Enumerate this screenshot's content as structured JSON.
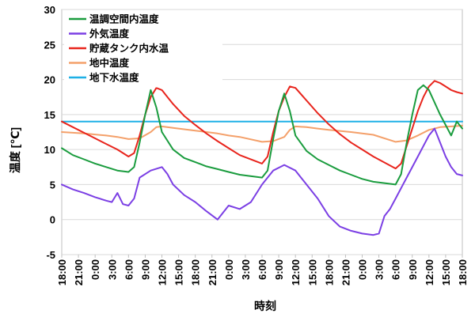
{
  "chart_data": {
    "type": "line",
    "xlabel": "時刻",
    "ylabel": "温度 [℃]",
    "ylim": [
      -5,
      30
    ],
    "yticks": [
      -5,
      0,
      5,
      10,
      15,
      20,
      25,
      30
    ],
    "ytick_labels": [
      "-5",
      "0",
      "5",
      "10",
      "15",
      "20",
      "25",
      "30"
    ],
    "xlim": [
      0,
      72
    ],
    "xtick_labels": [
      "18:00",
      "21:00",
      "0:00",
      "3:00",
      "6:00",
      "9:00",
      "12:00",
      "15:00",
      "18:00",
      "21:00",
      "0:00",
      "3:00",
      "6:00",
      "9:00",
      "12:00",
      "15:00",
      "18:00",
      "21:00",
      "0:00",
      "3:00",
      "6:00",
      "9:00",
      "12:00",
      "15:00",
      "18:00"
    ],
    "grid": "horizontal",
    "legend_position": "top-left",
    "series": [
      {
        "name": "温調空間内温度",
        "color": "#1a9c3e",
        "x": [
          0,
          2,
          4,
          6,
          8,
          10,
          12,
          13,
          14,
          15,
          16,
          17,
          18,
          20,
          22,
          24,
          26,
          28,
          30,
          32,
          36,
          37,
          38,
          39,
          40,
          41,
          42,
          44,
          46,
          48,
          50,
          52,
          54,
          56,
          60,
          61,
          62,
          63,
          64,
          65,
          66,
          68,
          69,
          70,
          71,
          72
        ],
        "values": [
          10.2,
          9.2,
          8.6,
          8.0,
          7.5,
          7.0,
          6.8,
          7.5,
          11.0,
          15.0,
          18.5,
          16.0,
          12.5,
          10.0,
          8.8,
          8.2,
          7.6,
          7.2,
          6.8,
          6.4,
          6.0,
          7.0,
          11.5,
          15.5,
          18.0,
          15.5,
          12.0,
          9.8,
          8.6,
          7.8,
          7.0,
          6.4,
          5.8,
          5.4,
          5.0,
          6.5,
          11.0,
          15.0,
          18.5,
          19.2,
          18.5,
          15.0,
          13.5,
          12.0,
          14.0,
          13.0
        ]
      },
      {
        "name": "外気温度",
        "color": "#7b3fe4",
        "x": [
          0,
          2,
          4,
          6,
          8,
          9,
          10,
          11,
          12,
          13,
          14,
          16,
          18,
          19,
          20,
          22,
          24,
          26,
          28,
          30,
          32,
          34,
          36,
          38,
          40,
          42,
          44,
          46,
          48,
          50,
          52,
          54,
          56,
          57,
          58,
          59,
          60,
          62,
          64,
          65,
          66,
          67,
          68,
          69,
          70,
          71,
          72
        ],
        "values": [
          5.0,
          4.3,
          3.8,
          3.2,
          2.7,
          2.5,
          3.8,
          2.2,
          2.0,
          3.0,
          6.0,
          7.0,
          7.5,
          6.5,
          5.0,
          3.5,
          2.5,
          1.2,
          0.0,
          2.0,
          1.5,
          2.5,
          5.0,
          7.0,
          7.8,
          7.0,
          5.0,
          3.0,
          0.5,
          -1.0,
          -1.6,
          -2.0,
          -2.2,
          -2.0,
          0.5,
          1.5,
          3.0,
          6.0,
          9.0,
          10.5,
          12.0,
          13.0,
          11.0,
          9.0,
          7.5,
          6.5,
          6.3
        ]
      },
      {
        "name": "貯蔵タンク内水温",
        "color": "#e8241c",
        "x": [
          0,
          2,
          4,
          6,
          8,
          10,
          12,
          13,
          14,
          15,
          16,
          17,
          18,
          19,
          20,
          22,
          24,
          26,
          28,
          30,
          32,
          36,
          37,
          38,
          39,
          40,
          41,
          42,
          44,
          46,
          48,
          50,
          52,
          54,
          56,
          60,
          61,
          62,
          63,
          64,
          65,
          66,
          67,
          68,
          69,
          70,
          71,
          72
        ],
        "values": [
          14.0,
          13.2,
          12.4,
          11.6,
          10.8,
          10.0,
          9.0,
          9.5,
          12.0,
          15.0,
          17.5,
          18.8,
          18.5,
          17.5,
          16.5,
          14.8,
          13.5,
          12.3,
          11.2,
          10.2,
          9.2,
          8.0,
          9.0,
          12.5,
          15.5,
          17.5,
          19.0,
          18.8,
          17.0,
          15.2,
          13.6,
          12.2,
          11.0,
          10.0,
          9.0,
          7.3,
          8.0,
          10.5,
          13.0,
          15.5,
          17.5,
          19.0,
          19.8,
          19.5,
          19.0,
          18.5,
          18.2,
          18.0
        ]
      },
      {
        "name": "地中温度",
        "color": "#f4a06a",
        "x": [
          0,
          4,
          8,
          10,
          12,
          14,
          16,
          17,
          18,
          20,
          22,
          24,
          28,
          30,
          32,
          36,
          38,
          40,
          41,
          42,
          44,
          46,
          48,
          52,
          56,
          60,
          62,
          64,
          66,
          68,
          70,
          72
        ],
        "values": [
          12.5,
          12.3,
          12.0,
          11.8,
          11.5,
          11.6,
          12.5,
          13.2,
          13.3,
          13.1,
          12.9,
          12.7,
          12.3,
          12.0,
          11.8,
          11.1,
          11.2,
          11.8,
          12.8,
          13.3,
          13.2,
          13.0,
          12.8,
          12.5,
          12.1,
          11.1,
          11.3,
          12.0,
          12.8,
          13.2,
          13.3,
          13.4
        ]
      },
      {
        "name": "地下水温度",
        "color": "#1eb0e6",
        "x": [
          0,
          72
        ],
        "values": [
          14.0,
          14.0
        ]
      }
    ]
  }
}
